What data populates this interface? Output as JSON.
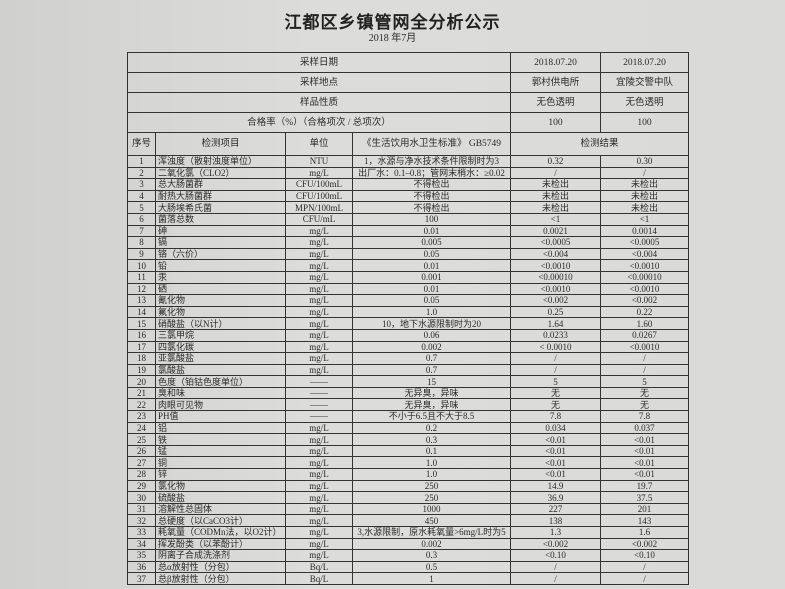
{
  "title": "江都区乡镇管网全分析公示",
  "subtitle": "2018 年7月",
  "header": {
    "sampling_date_label": "采样日期",
    "sampling_dates": [
      "2018.07.20",
      "2018.07.20"
    ],
    "sampling_site_label": "采样地点",
    "sampling_sites": [
      "郭村供电所",
      "宜陵交警中队"
    ],
    "sample_nature_label": "样品性质",
    "sample_natures": [
      "无色透明",
      "无色透明"
    ],
    "pass_rate_label": "合格率（%）（合格项次 / 总项次）",
    "pass_rates": [
      "100",
      "100"
    ]
  },
  "columns": {
    "no": "序号",
    "item": "检测项目",
    "unit": "单位",
    "standard": "《生活饮用水卫生标准》 GB5749",
    "result": "检测结果"
  },
  "rows": [
    [
      "1",
      "浑浊度（散射浊度单位）",
      "NTU",
      "1，水源与净水技术条件限制时为3",
      "0.32",
      "0.30"
    ],
    [
      "2",
      "二氧化氯（CLO2）",
      "mg/L",
      "出厂水：0.1–0.8；管网末梢水：≥0.02",
      "/",
      "/"
    ],
    [
      "3",
      "总大肠菌群",
      "CFU/100mL",
      "不得检出",
      "未检出",
      "未检出"
    ],
    [
      "4",
      "耐热大肠菌群",
      "CFU/100mL",
      "不得检出",
      "未检出",
      "未检出"
    ],
    [
      "5",
      "大肠埃希氏菌",
      "MPN/100mL",
      "不得检出",
      "未检出",
      "未检出"
    ],
    [
      "6",
      "菌落总数",
      "CFU/mL",
      "100",
      "<1",
      "<1"
    ],
    [
      "7",
      "砷",
      "mg/L",
      "0.01",
      "0.0021",
      "0.0014"
    ],
    [
      "8",
      "镉",
      "mg/L",
      "0.005",
      "<0.0005",
      "<0.0005"
    ],
    [
      "9",
      "铬（六价）",
      "mg/L",
      "0.05",
      "<0.004",
      "<0.004"
    ],
    [
      "10",
      "铅",
      "mg/L",
      "0.01",
      "<0.0010",
      "<0.0010"
    ],
    [
      "11",
      "汞",
      "mg/L",
      "0.001",
      "<0.00010",
      "<0.00010"
    ],
    [
      "12",
      "硒",
      "mg/L",
      "0.01",
      "<0.0010",
      "<0.0010"
    ],
    [
      "13",
      "氰化物",
      "mg/L",
      "0.05",
      "<0.002",
      "<0.002"
    ],
    [
      "14",
      "氟化物",
      "mg/L",
      "1.0",
      "0.25",
      "0.22"
    ],
    [
      "15",
      "硝酸盐（以N计）",
      "mg/L",
      "10，地下水源限制时为20",
      "1.64",
      "1.60"
    ],
    [
      "16",
      "三氯甲烷",
      "mg/L",
      "0.06",
      "0.0233",
      "0.0267"
    ],
    [
      "17",
      "四氯化碳",
      "mg/L",
      "0.002",
      "< 0.0010",
      "<0.0010"
    ],
    [
      "18",
      "亚氯酸盐",
      "mg/L",
      "0.7",
      "/",
      "/"
    ],
    [
      "19",
      "氯酸盐",
      "mg/L",
      "0.7",
      "/",
      "/"
    ],
    [
      "20",
      "色度（铂钴色度单位）",
      "——",
      "15",
      "5",
      "5"
    ],
    [
      "21",
      "臭和味",
      "——",
      "无异臭，异味",
      "无",
      "无"
    ],
    [
      "22",
      "肉眼可见物",
      "——",
      "无异臭，异味",
      "无",
      "无"
    ],
    [
      "23",
      "PH值",
      "——",
      "不小于6.5且不大于8.5",
      "7.8",
      "7.8"
    ],
    [
      "24",
      "铝",
      "mg/L",
      "0.2",
      "0.034",
      "0.037"
    ],
    [
      "25",
      "铁",
      "mg/L",
      "0.3",
      "<0.01",
      "<0.01"
    ],
    [
      "26",
      "锰",
      "mg/L",
      "0.1",
      "<0.01",
      "<0.01"
    ],
    [
      "27",
      "铜",
      "mg/L",
      "1.0",
      "<0.01",
      "<0.01"
    ],
    [
      "28",
      "锌",
      "mg/L",
      "1.0",
      "<0.01",
      "<0.01"
    ],
    [
      "29",
      "氯化物",
      "mg/L",
      "250",
      "14.9",
      "19.7"
    ],
    [
      "30",
      "硫酸盐",
      "mg/L",
      "250",
      "36.9",
      "37.5"
    ],
    [
      "31",
      "溶解性总固体",
      "mg/L",
      "1000",
      "227",
      "201"
    ],
    [
      "32",
      "总硬度（以CaCO3计）",
      "mg/L",
      "450",
      "138",
      "143"
    ],
    [
      "33",
      "耗氧量（CODMn法，以O2计）",
      "mg/L",
      "3,水源限制，原水耗氧量>6mg/L时为5",
      "1.3",
      "1.6"
    ],
    [
      "34",
      "挥发酚类（以苯酚计）",
      "mg/L",
      "0.002",
      "<0.002",
      "<0.002"
    ],
    [
      "35",
      "阴离子合成洗涤剂",
      "mg/L",
      "0.3",
      "<0.10",
      "<0.10"
    ],
    [
      "36",
      "总α放射性（分包）",
      "Bq/L",
      "0.5",
      "/",
      "/"
    ],
    [
      "37",
      "总β放射性（分包）",
      "Bq/L",
      "1",
      "/",
      "/"
    ]
  ]
}
